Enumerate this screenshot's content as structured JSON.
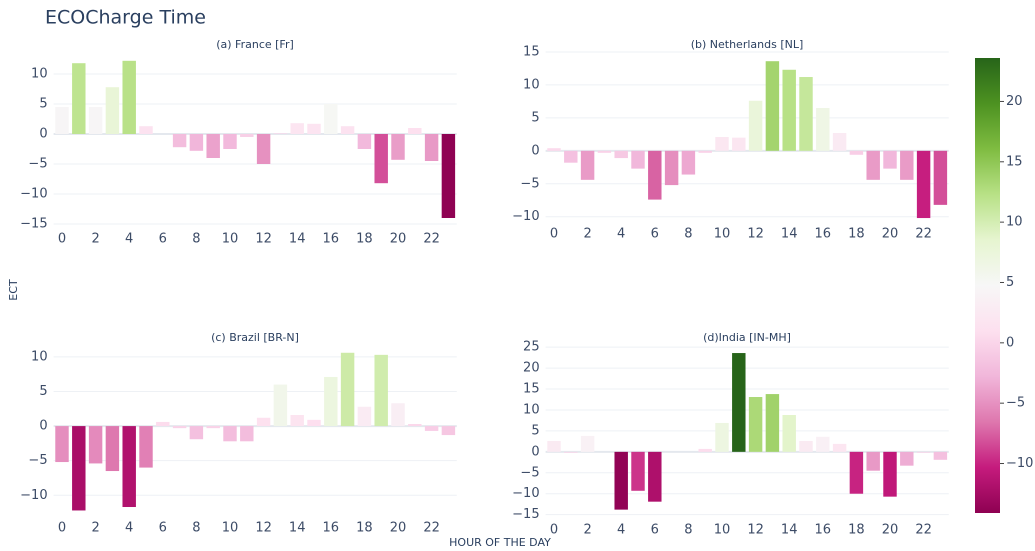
{
  "title": "ECOCharge Time",
  "x_label": "HOUR OF THE DAY",
  "y_label": "ECT",
  "colorbar": {
    "lim": [
      -14.1,
      23.6
    ],
    "ticks": [
      {
        "value": -10,
        "label": "−10"
      },
      {
        "value": -5,
        "label": "−5"
      },
      0,
      5,
      10,
      15,
      20
    ],
    "colors": [
      "#8e0152",
      "#c51b7d",
      "#de77ae",
      "#f1b6da",
      "#fde0ef",
      "#f7f7f7",
      "#e6f5d0",
      "#b8e186",
      "#7fbc41",
      "#4d9221",
      "#276419"
    ]
  },
  "chart_data": [
    {
      "type": "bar",
      "title": "(a) France [Fr]",
      "x": [
        0,
        1,
        2,
        3,
        4,
        5,
        6,
        7,
        8,
        9,
        10,
        11,
        12,
        13,
        14,
        15,
        16,
        17,
        18,
        19,
        20,
        21,
        22,
        23
      ],
      "values": [
        4.5,
        11.8,
        4.5,
        7.8,
        12.2,
        1.3,
        0,
        -2.2,
        -2.8,
        -4,
        -2.5,
        -0.5,
        -5,
        0.1,
        1.8,
        1.7,
        5,
        1.3,
        -2.5,
        -8.2,
        -4.3,
        1,
        -4.5,
        -14
      ],
      "xlim": [
        -0.5,
        23.5
      ],
      "xticks": [
        0,
        2,
        4,
        6,
        8,
        10,
        12,
        14,
        16,
        18,
        20,
        22
      ],
      "ylim": [
        -15.5,
        13
      ],
      "yticks": [
        {
          "value": -15,
          "label": "−15"
        },
        {
          "value": -10,
          "label": "−10"
        },
        {
          "value": -5,
          "label": "−5"
        },
        0,
        5,
        10
      ],
      "grid": true
    },
    {
      "type": "bar",
      "title": "(b) Netherlands [NL]",
      "x": [
        0,
        1,
        2,
        3,
        4,
        5,
        6,
        7,
        8,
        9,
        10,
        11,
        12,
        13,
        14,
        15,
        16,
        17,
        18,
        19,
        20,
        21,
        22,
        23
      ],
      "values": [
        0.4,
        -1.8,
        -4.4,
        -0.3,
        -1.1,
        -2.7,
        -7.4,
        -5.2,
        -3.6,
        -0.3,
        2.1,
        2,
        7.6,
        13.6,
        12.3,
        11.2,
        6.5,
        2.7,
        -0.6,
        -4.4,
        -2.7,
        -4.4,
        -10.2,
        -8.2
      ],
      "xlim": [
        -0.5,
        23.5
      ],
      "xticks": [
        0,
        2,
        4,
        6,
        8,
        10,
        12,
        14,
        16,
        18,
        20,
        22
      ],
      "ylim": [
        -10.8,
        15.3
      ],
      "yticks": [
        {
          "value": -10,
          "label": "−10"
        },
        {
          "value": -5,
          "label": "−5"
        },
        0,
        5,
        10,
        15
      ],
      "grid": true
    },
    {
      "type": "bar",
      "title": "(c) Brazil [BR-N]",
      "x": [
        0,
        1,
        2,
        3,
        4,
        5,
        6,
        7,
        8,
        9,
        10,
        11,
        12,
        13,
        14,
        15,
        16,
        17,
        18,
        19,
        20,
        21,
        22,
        23
      ],
      "values": [
        -5.2,
        -12.2,
        -5.4,
        -6.5,
        -11.7,
        -6,
        0.6,
        -0.3,
        -1.9,
        -0.3,
        -2.2,
        -2.2,
        1.2,
        6,
        1.6,
        0.9,
        7.1,
        10.6,
        2.8,
        10.3,
        3.3,
        0.3,
        -0.7,
        -1.3
      ],
      "xlim": [
        -0.5,
        23.5
      ],
      "xticks": [
        0,
        2,
        4,
        6,
        8,
        10,
        12,
        14,
        16,
        18,
        20,
        22
      ],
      "ylim": [
        -13,
        11
      ],
      "yticks": [
        {
          "value": -10,
          "label": "−10"
        },
        {
          "value": -5,
          "label": "−5"
        },
        0,
        5,
        10
      ],
      "grid": true
    },
    {
      "type": "bar",
      "title": "(d)India [IN-MH]",
      "x": [
        0,
        1,
        2,
        3,
        4,
        5,
        6,
        7,
        8,
        9,
        10,
        11,
        12,
        13,
        14,
        15,
        16,
        17,
        18,
        19,
        20,
        21,
        22,
        23
      ],
      "values": [
        2.6,
        -0.2,
        3.8,
        0,
        -13.8,
        -9.3,
        -11.9,
        0,
        0,
        0.7,
        6.9,
        23.6,
        13.1,
        13.8,
        8.8,
        2.6,
        3.6,
        1.9,
        -10,
        -4.5,
        -10.7,
        -3.3,
        -0.2,
        -1.9
      ],
      "xlim": [
        -0.5,
        23.5
      ],
      "xticks": [
        0,
        2,
        4,
        6,
        8,
        10,
        12,
        14,
        16,
        18,
        20,
        22
      ],
      "ylim": [
        -15.8,
        26
      ],
      "yticks": [
        {
          "value": -15,
          "label": "−15"
        },
        {
          "value": -10,
          "label": "−10"
        },
        {
          "value": -5,
          "label": "−5"
        },
        0,
        5,
        10,
        15,
        20,
        25
      ],
      "grid": true
    }
  ]
}
